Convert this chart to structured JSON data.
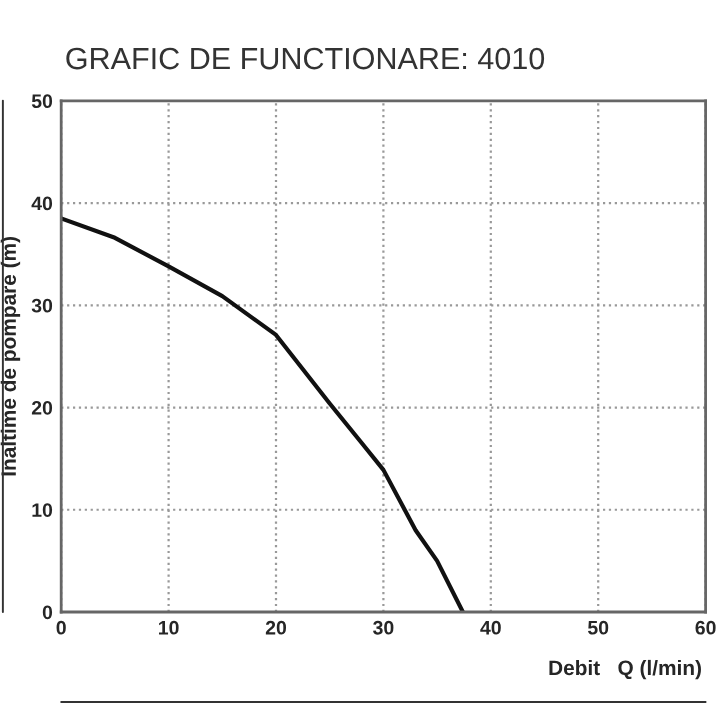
{
  "chart_data": {
    "type": "line",
    "title": "GRAFIC DE FUNCTIONARE: 4010",
    "xlabel": "Debit   Q (l/min)",
    "ylabel": "Inaltime de pompare (m)",
    "series": [
      {
        "color": "#111111",
        "x": [
          0,
          5,
          10,
          15,
          20,
          25,
          28,
          30,
          33,
          35,
          37.4
        ],
        "values": [
          38.5,
          36.6,
          33.8,
          30.9,
          27.1,
          20.4,
          16.5,
          13.9,
          8,
          5,
          0
        ]
      }
    ],
    "xlim": [
      0,
      60
    ],
    "ylim": [
      0,
      50
    ],
    "xticks": [
      0,
      10,
      20,
      30,
      40,
      50,
      60
    ],
    "yticks": [
      0,
      10,
      20,
      30,
      40,
      50
    ],
    "grid": true,
    "line_style": "solid",
    "marker": "none"
  }
}
